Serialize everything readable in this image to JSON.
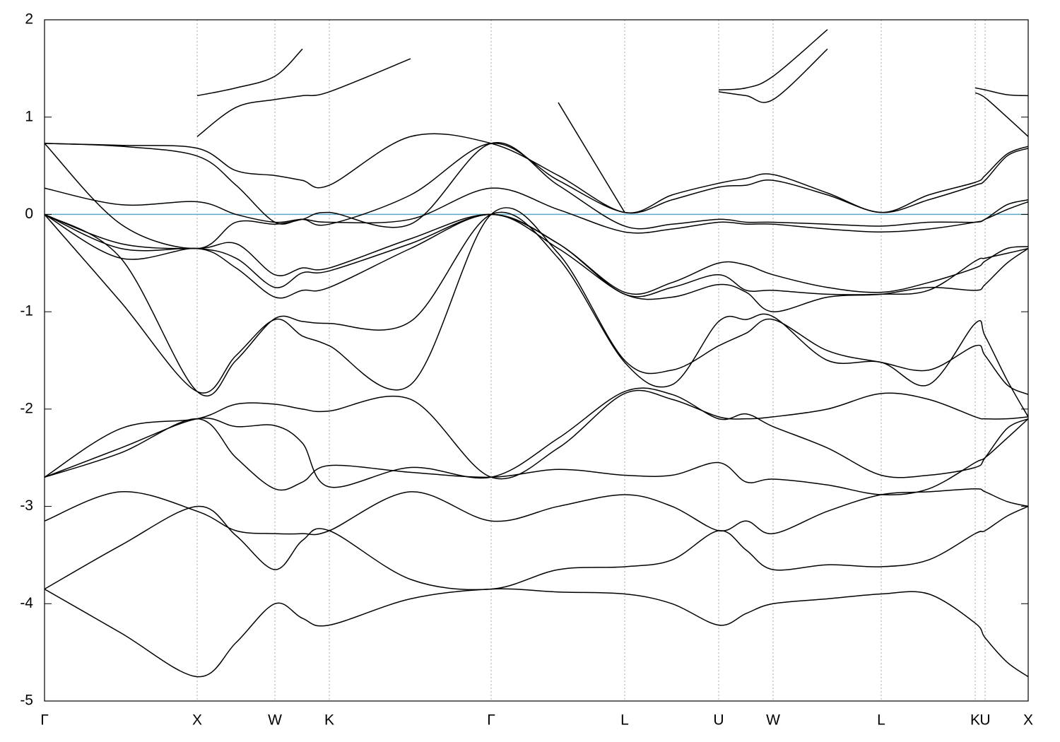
{
  "chart_data": {
    "type": "line",
    "x": [
      0,
      108,
      216,
      271,
      326,
      365,
      403,
      518,
      632,
      727,
      821,
      888,
      954,
      993,
      1031,
      1108,
      1184,
      1251,
      1317,
      1331,
      1362,
      1392
    ],
    "xlim": [
      0,
      1392
    ],
    "ylim": [
      -5,
      2
    ],
    "yticks": [
      -5,
      -4,
      -3,
      -2,
      -1,
      0,
      1,
      2
    ],
    "xticks": [
      {
        "value": 0,
        "label": "Γ"
      },
      {
        "value": 216,
        "label": "X"
      },
      {
        "value": 326,
        "label": "W"
      },
      {
        "value": 403,
        "label": "K"
      },
      {
        "value": 632,
        "label": "Γ"
      },
      {
        "value": 821,
        "label": "L"
      },
      {
        "value": 954,
        "label": "U"
      },
      {
        "value": 1031,
        "label": "W"
      },
      {
        "value": 1184,
        "label": "L"
      },
      {
        "value": 1317,
        "label": "K"
      },
      {
        "value": 1331,
        "label": "U"
      },
      {
        "value": 1392,
        "label": "X"
      }
    ],
    "grid": true,
    "fermi_level": 0,
    "fermi_color": "#5aaac8",
    "series": [
      {
        "color": "#000000",
        "values": [
          -3.85,
          -4.3,
          -4.75,
          -4.4,
          -4.0,
          -4.15,
          -4.22,
          -3.95,
          -3.85,
          -3.88,
          -3.9,
          -4.0,
          -4.22,
          -4.1,
          -4.0,
          -3.95,
          -3.9,
          -3.9,
          -4.2,
          -4.35,
          -4.6,
          -4.75
        ]
      },
      {
        "color": "#000000",
        "values": [
          -3.85,
          -3.4,
          -3.0,
          -3.3,
          -3.65,
          -3.35,
          -3.25,
          -3.75,
          -3.85,
          -3.65,
          -3.62,
          -3.55,
          -3.25,
          -3.45,
          -3.65,
          -3.6,
          -3.62,
          -3.55,
          -3.28,
          -3.25,
          -3.1,
          -3.0
        ]
      },
      {
        "color": "#000000",
        "values": [
          -3.15,
          -2.85,
          -3.05,
          -3.25,
          -3.28,
          -3.28,
          -3.25,
          -2.85,
          -3.15,
          -3.0,
          -2.88,
          -3.0,
          -3.25,
          -3.15,
          -3.28,
          -3.05,
          -2.88,
          -2.85,
          -2.82,
          -2.85,
          -2.95,
          -3.0
        ]
      },
      {
        "color": "#000000",
        "values": [
          -2.7,
          -2.45,
          -2.1,
          -2.5,
          -2.82,
          -2.75,
          -2.58,
          -2.65,
          -2.7,
          -2.62,
          -2.68,
          -2.68,
          -2.55,
          -2.75,
          -2.72,
          -2.78,
          -2.88,
          -2.82,
          -2.55,
          -2.5,
          -2.3,
          -2.1
        ]
      },
      {
        "color": "#000000",
        "values": [
          -2.7,
          -2.4,
          -2.1,
          -2.18,
          -2.17,
          -2.35,
          -2.8,
          -2.6,
          -2.7,
          -2.3,
          -1.82,
          -1.85,
          -2.1,
          -2.05,
          -2.18,
          -2.4,
          -2.68,
          -2.68,
          -2.6,
          -2.5,
          -2.2,
          -2.1
        ]
      },
      {
        "color": "#000000",
        "values": [
          -2.7,
          -2.2,
          -2.1,
          -1.95,
          -1.95,
          -2.0,
          -2.02,
          -1.9,
          -2.7,
          -2.4,
          -1.84,
          -1.9,
          -2.08,
          -2.1,
          -2.08,
          -2.0,
          -1.84,
          -1.9,
          -2.08,
          -2.1,
          -2.1,
          -2.08
        ]
      },
      {
        "color": "#000000",
        "values": [
          0,
          -0.9,
          -1.82,
          -1.45,
          -1.08,
          -1.25,
          -1.35,
          -1.75,
          0,
          -0.4,
          -1.5,
          -1.6,
          -1.35,
          -1.22,
          -1.08,
          -1.4,
          -1.52,
          -1.6,
          -1.35,
          -1.45,
          -1.75,
          -1.85
        ]
      },
      {
        "color": "#000000",
        "values": [
          0,
          -0.45,
          -1.82,
          -1.5,
          -1.07,
          -1.1,
          -1.12,
          -1.1,
          0,
          -0.45,
          -1.52,
          -1.75,
          -1.1,
          -1.08,
          -1.05,
          -1.5,
          -1.52,
          -1.75,
          -1.12,
          -1.25,
          -1.7,
          -2.08
        ]
      },
      {
        "color": "#000000",
        "values": [
          0,
          -0.45,
          -0.35,
          -0.55,
          -0.85,
          -0.78,
          -0.75,
          -0.35,
          0,
          -0.35,
          -0.82,
          -0.85,
          -0.72,
          -0.8,
          -1.0,
          -0.85,
          -0.82,
          -0.75,
          -0.78,
          -0.72,
          -0.5,
          -0.35
        ]
      },
      {
        "color": "#000000",
        "values": [
          0,
          -0.35,
          -0.35,
          -0.45,
          -0.75,
          -0.6,
          -0.58,
          -0.3,
          0,
          -0.3,
          -0.82,
          -0.75,
          -0.62,
          -0.78,
          -0.78,
          -0.82,
          -0.82,
          -0.78,
          -0.48,
          -0.45,
          -0.4,
          -0.35
        ]
      },
      {
        "color": "#000000",
        "values": [
          0,
          -0.3,
          -0.35,
          -0.3,
          -0.62,
          -0.55,
          -0.55,
          -0.25,
          0,
          -0.3,
          -0.8,
          -0.7,
          -0.5,
          -0.52,
          -0.62,
          -0.75,
          -0.8,
          -0.7,
          -0.55,
          -0.48,
          -0.35,
          -0.33
        ]
      },
      {
        "color": "#000000",
        "values": [
          0.27,
          0.1,
          0.13,
          0.0,
          -0.08,
          -0.05,
          -0.08,
          -0.05,
          0.27,
          0.05,
          -0.18,
          -0.15,
          -0.08,
          -0.1,
          -0.1,
          -0.15,
          -0.18,
          -0.15,
          -0.08,
          -0.05,
          0.1,
          0.15
        ]
      },
      {
        "color": "#000000",
        "values": [
          0.73,
          -0.1,
          -0.35,
          -0.08,
          -0.1,
          -0.05,
          0.02,
          -0.1,
          0.73,
          0.3,
          -0.12,
          -0.1,
          -0.05,
          -0.08,
          -0.08,
          -0.1,
          -0.12,
          -0.08,
          -0.08,
          -0.05,
          0.05,
          0.13
        ]
      },
      {
        "color": "#000000",
        "values": [
          0.73,
          0.7,
          0.6,
          0.3,
          -0.08,
          -0.05,
          -0.1,
          0.2,
          0.73,
          0.35,
          0.02,
          0.15,
          0.28,
          0.3,
          0.35,
          0.2,
          0.02,
          0.15,
          0.3,
          0.35,
          0.6,
          0.68
        ]
      },
      {
        "color": "#000000",
        "values": [
          0.73,
          0.71,
          0.68,
          0.45,
          0.4,
          0.35,
          0.3,
          0.8,
          0.73,
          0.4,
          0.02,
          0.2,
          0.32,
          0.37,
          0.41,
          0.22,
          0.02,
          0.2,
          0.33,
          0.4,
          0.62,
          0.7
        ]
      },
      {
        "color": "#000000",
        "values": [
          null,
          null,
          0.8,
          1.1,
          1.18,
          1.22,
          1.26,
          1.6,
          null,
          null,
          null,
          null,
          1.26,
          1.22,
          1.18,
          1.7,
          null,
          null,
          1.25,
          1.2,
          1.0,
          0.8
        ]
      },
      {
        "color": "#000000",
        "values": [
          null,
          null,
          1.22,
          1.3,
          1.42,
          1.7,
          null,
          null,
          null,
          null,
          null,
          null,
          1.28,
          1.3,
          1.42,
          1.9,
          null,
          null,
          1.3,
          1.28,
          1.23,
          1.22
        ]
      },
      {
        "color": "#000000",
        "values": [
          null,
          null,
          null,
          null,
          null,
          null,
          null,
          null,
          null,
          1.15,
          0.02,
          null,
          null,
          null,
          null,
          null,
          null,
          null,
          null,
          null,
          null,
          null
        ]
      }
    ]
  }
}
